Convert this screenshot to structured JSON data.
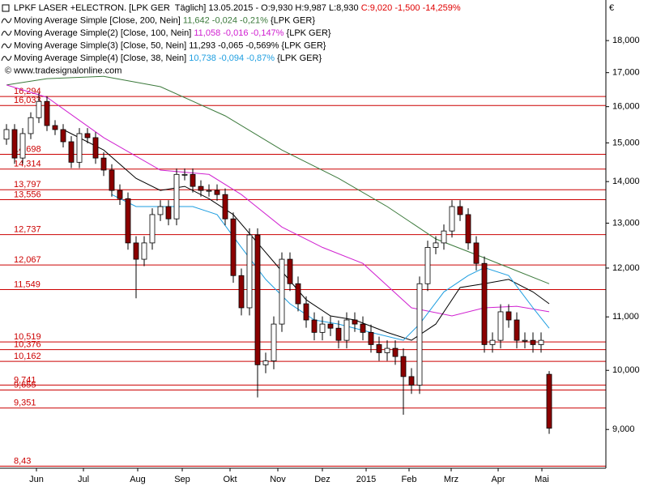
{
  "chart_data": {
    "type": "candlestick",
    "header": [
      {
        "parts": [
          {
            "text": "LPKF LASER +ELECTRON. [LPK GER  Täglich] 13.05.2015 - O:9,930 H:9,987 L:8,930 ",
            "color": "#000000"
          },
          {
            "text": "C:9,020 -1,500 -14,259%",
            "color": "#e00000"
          }
        ]
      },
      {
        "parts": [
          {
            "text": "Moving Average Simple [Close, 200, Nein] ",
            "color": "#000000"
          },
          {
            "text": "11,642 -0,024 -0,21% ",
            "color": "#3c7a3c"
          },
          {
            "text": "{LPK GER}",
            "color": "#000000"
          }
        ]
      },
      {
        "parts": [
          {
            "text": "Moving Average Simple(2) [Close, 100, Nein] ",
            "color": "#000000"
          },
          {
            "text": "11,058 -0,016 -0,147% ",
            "color": "#d020d0"
          },
          {
            "text": "{LPK GER}",
            "color": "#000000"
          }
        ]
      },
      {
        "parts": [
          {
            "text": "Moving Average Simple(3) [Close, 50, Nein] ",
            "color": "#000000"
          },
          {
            "text": "11,293 -0,065 -0,569% ",
            "color": "#000000"
          },
          {
            "text": "{LPK GER}",
            "color": "#000000"
          }
        ]
      },
      {
        "parts": [
          {
            "text": "Moving Average Simple(4) [Close, 38, Nein] ",
            "color": "#000000"
          },
          {
            "text": "10,738 -0,094 -0,87% ",
            "color": "#1e9ee0"
          },
          {
            "text": "{LPK GER}",
            "color": "#000000"
          }
        ]
      }
    ],
    "copyright": "© www.tradesignalonline.com",
    "currency": "€",
    "log_scale": true,
    "ylim": [
      8.4,
      19.35
    ],
    "xlim": [
      -0.8,
      74
    ],
    "yticks": [
      {
        "value": 9,
        "label": "9,000"
      },
      {
        "value": 10,
        "label": "10,000"
      },
      {
        "value": 11,
        "label": "11,000"
      },
      {
        "value": 12,
        "label": "12,000"
      },
      {
        "value": 13,
        "label": "13,000"
      },
      {
        "value": 14,
        "label": "14,000"
      },
      {
        "value": 15,
        "label": "15,000"
      },
      {
        "value": 16,
        "label": "16,000"
      },
      {
        "value": 17,
        "label": "17,000"
      },
      {
        "value": 18,
        "label": "18,000"
      }
    ],
    "xticks": [
      {
        "value": 3.7,
        "label": "Jun"
      },
      {
        "value": 9.5,
        "label": "Jul"
      },
      {
        "value": 16.2,
        "label": "Aug"
      },
      {
        "value": 21.7,
        "label": "Sep"
      },
      {
        "value": 27.6,
        "label": "Okt"
      },
      {
        "value": 33.5,
        "label": "Nov"
      },
      {
        "value": 39,
        "label": "Dez"
      },
      {
        "value": 44.4,
        "label": "2015"
      },
      {
        "value": 49.7,
        "label": "Feb"
      },
      {
        "value": 54.9,
        "label": "Mrz"
      },
      {
        "value": 60.7,
        "label": "Apr"
      },
      {
        "value": 66.1,
        "label": "Mai"
      }
    ],
    "levels_color": "#cc0000",
    "levels": [
      {
        "value": 16.294,
        "label": "16,294"
      },
      {
        "value": 16.033,
        "label": "16,033"
      },
      {
        "value": 14.698,
        "label": "14,698"
      },
      {
        "value": 14.314,
        "label": "14,314"
      },
      {
        "value": 13.797,
        "label": "13,797"
      },
      {
        "value": 13.556,
        "label": "13,556"
      },
      {
        "value": 12.737,
        "label": "12,737"
      },
      {
        "value": 12.067,
        "label": "12,067"
      },
      {
        "value": 11.549,
        "label": "11,549"
      },
      {
        "value": 10.519,
        "label": "10,519"
      },
      {
        "value": 10.376,
        "label": "10,376"
      },
      {
        "value": 10.162,
        "label": "10,162"
      },
      {
        "value": 9.741,
        "label": "9,741"
      },
      {
        "value": 9.655,
        "label": "9,655"
      },
      {
        "value": 9.351,
        "label": "9,351"
      },
      {
        "value": 8.43,
        "label": "8,43"
      }
    ],
    "up_color": "#ffffff",
    "down_color": "#8b0000",
    "candles": {
      "open": [
        15.1,
        15.36,
        14.6,
        15.25,
        15.69,
        16.15,
        15.47,
        15.36,
        15.03,
        14.49,
        15.25,
        15.14,
        14.6,
        14.29,
        13.78,
        13.58,
        12.55,
        12.19,
        12.55,
        13.2,
        13.39,
        13.1,
        14.18,
        14.18,
        13.88,
        13.78,
        13.78,
        13.68,
        13.1,
        11.84,
        11.18,
        12.73,
        10.1,
        10.17,
        10.86,
        12.19,
        11.67,
        11.26,
        10.94,
        10.7,
        10.86,
        10.78,
        10.55,
        10.94,
        10.86,
        10.7,
        10.47,
        10.32,
        10.4,
        10.25,
        9.89,
        9.74,
        11.67,
        12.45,
        12.55,
        12.82,
        13.39,
        13.2,
        12.55,
        12.1,
        10.47,
        10.55,
        11.1,
        10.94,
        10.55,
        10.55,
        10.47,
        9.93
      ],
      "high": [
        15.51,
        15.51,
        15.4,
        15.84,
        16.4,
        16.3,
        15.62,
        15.51,
        15.18,
        15.4,
        15.4,
        15.29,
        14.75,
        14.44,
        13.93,
        13.73,
        12.7,
        12.7,
        13.35,
        13.54,
        13.54,
        14.33,
        14.33,
        14.33,
        14.03,
        13.93,
        13.93,
        13.83,
        13.25,
        11.99,
        12.88,
        12.88,
        10.32,
        11.01,
        12.34,
        12.34,
        11.82,
        11.41,
        11.09,
        11.01,
        11.01,
        10.93,
        11.09,
        11.09,
        11.01,
        10.85,
        10.62,
        10.55,
        10.55,
        10.4,
        10.04,
        11.82,
        12.6,
        12.7,
        12.97,
        13.54,
        13.54,
        13.35,
        12.7,
        12.25,
        10.7,
        11.25,
        11.25,
        11.09,
        10.7,
        10.7,
        10.7,
        9.987
      ],
      "low": [
        14.95,
        14.45,
        14.45,
        15.1,
        15.54,
        15.32,
        15.21,
        14.88,
        14.34,
        14.34,
        14.99,
        14.45,
        14.14,
        13.63,
        13.43,
        12.4,
        11.37,
        12.04,
        12.4,
        13.05,
        12.95,
        12.95,
        14.03,
        13.73,
        13.63,
        13.63,
        13.53,
        12.95,
        11.69,
        11.03,
        11.03,
        9.53,
        9.95,
        10.02,
        10.71,
        11.52,
        11.11,
        10.79,
        10.55,
        10.55,
        10.63,
        10.4,
        10.4,
        10.71,
        10.55,
        10.32,
        10.17,
        10.17,
        10.1,
        9.24,
        9.59,
        9.59,
        11.52,
        12.3,
        12.4,
        12.67,
        13.05,
        12.4,
        11.95,
        10.32,
        10.32,
        10.4,
        10.79,
        10.4,
        10.4,
        10.32,
        10.32,
        8.93
      ],
      "close": [
        15.36,
        14.6,
        15.25,
        15.69,
        16.15,
        15.47,
        15.36,
        15.03,
        14.49,
        15.25,
        15.14,
        14.6,
        14.29,
        13.78,
        13.58,
        12.55,
        12.19,
        12.55,
        13.2,
        13.39,
        13.1,
        14.18,
        14.18,
        13.88,
        13.78,
        13.78,
        13.68,
        13.1,
        11.84,
        11.18,
        12.73,
        10.1,
        10.17,
        10.86,
        12.19,
        11.67,
        11.26,
        10.94,
        10.7,
        10.86,
        10.78,
        10.55,
        10.94,
        10.86,
        10.7,
        10.47,
        10.32,
        10.4,
        10.25,
        9.89,
        9.74,
        11.67,
        12.45,
        12.55,
        12.82,
        13.39,
        13.2,
        12.55,
        12.1,
        10.47,
        10.55,
        11.1,
        10.94,
        10.55,
        10.55,
        10.47,
        10.55,
        9.02
      ]
    },
    "series": [
      {
        "name": "Moving Average Simple [Close, 200, Nein]",
        "color": "#3c7a3c",
        "x": [
          0,
          5,
          12,
          19,
          27,
          34,
          41,
          47,
          53,
          59,
          67
        ],
        "values": [
          16.63,
          16.82,
          16.89,
          16.58,
          15.74,
          14.81,
          14.08,
          13.39,
          12.64,
          12.22,
          11.67
        ]
      },
      {
        "name": "Moving Average Simple(2) [Close, 100, Nein]",
        "color": "#d020d0",
        "x": [
          0,
          5,
          12,
          19,
          25,
          29,
          34,
          39,
          44,
          50,
          55,
          59,
          63,
          67
        ],
        "values": [
          16.63,
          16.27,
          15.14,
          14.29,
          14.18,
          13.68,
          12.91,
          12.45,
          12.1,
          11.18,
          11.02,
          11.18,
          11.21,
          11.1
        ]
      },
      {
        "name": "Moving Average Simple(3) [Close, 50, Nein]",
        "color": "#000000",
        "x": [
          7,
          12,
          16,
          19,
          22,
          25,
          28,
          31,
          34,
          37,
          40,
          43,
          47,
          50,
          53,
          56,
          59,
          62,
          65,
          67
        ],
        "values": [
          15.36,
          14.81,
          14.08,
          13.78,
          13.88,
          13.58,
          13.2,
          12.55,
          11.93,
          11.34,
          11.02,
          10.94,
          10.7,
          10.55,
          10.86,
          11.59,
          11.67,
          11.76,
          11.5,
          11.26
        ]
      },
      {
        "name": "Moving Average Simple(4) [Close, 38, Nein]",
        "color": "#1e9ee0",
        "x": [
          13,
          16,
          19,
          23,
          26,
          29,
          32,
          35,
          38,
          41,
          45,
          49,
          51,
          54,
          57,
          59,
          62,
          65,
          67
        ],
        "values": [
          13.68,
          13.39,
          13.39,
          13.39,
          13.2,
          12.45,
          11.76,
          11.26,
          10.94,
          10.86,
          10.7,
          10.55,
          10.86,
          11.5,
          11.84,
          12.01,
          11.84,
          11.18,
          10.78
        ]
      }
    ]
  }
}
